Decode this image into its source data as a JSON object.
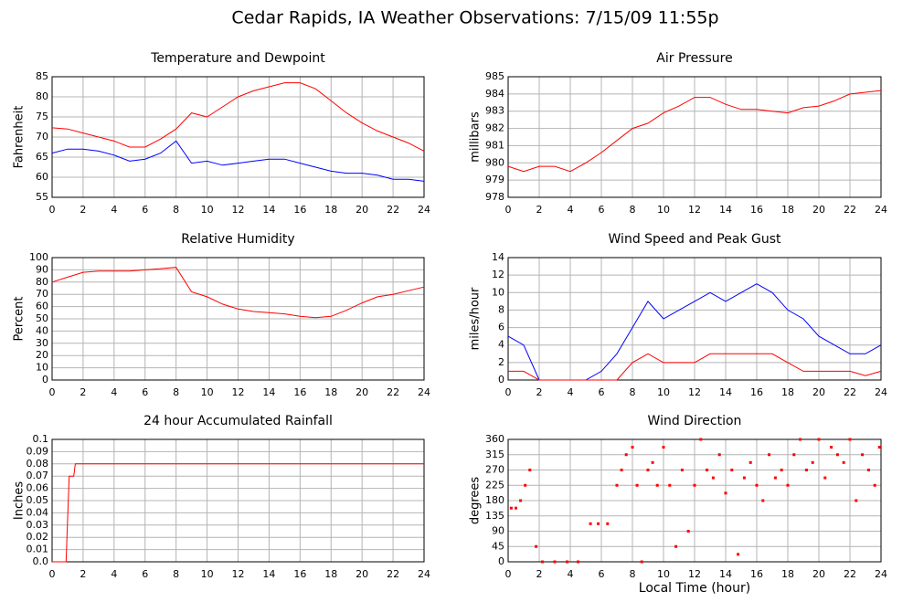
{
  "title": "Cedar Rapids, IA Weather Observations: 7/15/09 11:55p",
  "xlabel": "Local Time (hour)",
  "chart_data": [
    {
      "type": "line",
      "title": "Temperature and Dewpoint",
      "ylabel": "Fahrenheit",
      "x": [
        0,
        1,
        2,
        3,
        4,
        5,
        6,
        7,
        8,
        9,
        10,
        11,
        12,
        13,
        14,
        15,
        16,
        17,
        18,
        19,
        20,
        21,
        22,
        23,
        24
      ],
      "series": [
        {
          "name": "Temperature",
          "color": "#ff0000",
          "values": [
            72.3,
            72,
            71,
            70,
            69,
            67.5,
            67.5,
            69.5,
            72,
            76,
            75,
            77.5,
            80,
            81.5,
            82.5,
            83.5,
            83.5,
            82,
            79,
            76,
            73.5,
            71.5,
            70,
            68.5,
            66.5
          ]
        },
        {
          "name": "Dewpoint",
          "color": "#0000ff",
          "values": [
            66,
            67,
            67,
            66.5,
            65.5,
            64,
            64.5,
            66,
            69,
            63.5,
            64,
            63,
            63.5,
            64,
            64.5,
            64.5,
            63.5,
            62.5,
            61.5,
            61,
            61,
            60.5,
            59.5,
            59.5,
            59
          ]
        }
      ],
      "xlim": [
        0,
        24
      ],
      "xticks": [
        0,
        2,
        4,
        6,
        8,
        10,
        12,
        14,
        16,
        18,
        20,
        22,
        24
      ],
      "ylim": [
        55,
        85
      ],
      "yticks": [
        55,
        60,
        65,
        70,
        75,
        80,
        85
      ],
      "grid": true
    },
    {
      "type": "line",
      "title": "Air Pressure",
      "ylabel": "millibars",
      "x": [
        0,
        1,
        2,
        3,
        4,
        5,
        6,
        7,
        8,
        9,
        10,
        11,
        12,
        13,
        14,
        15,
        16,
        17,
        18,
        19,
        20,
        21,
        22,
        23,
        24
      ],
      "series": [
        {
          "name": "Pressure",
          "color": "#ff0000",
          "values": [
            979.8,
            979.5,
            979.8,
            979.8,
            979.5,
            980,
            980.6,
            981.3,
            982,
            982.3,
            982.9,
            983.3,
            983.8,
            983.8,
            983.4,
            983.1,
            983.1,
            983,
            982.9,
            983.2,
            983.3,
            983.6,
            984,
            984.1,
            984.2
          ]
        }
      ],
      "xlim": [
        0,
        24
      ],
      "xticks": [
        0,
        2,
        4,
        6,
        8,
        10,
        12,
        14,
        16,
        18,
        20,
        22,
        24
      ],
      "ylim": [
        978,
        985
      ],
      "yticks": [
        978,
        979,
        980,
        981,
        982,
        983,
        984,
        985
      ],
      "grid": true
    },
    {
      "type": "line",
      "title": "Relative Humidity",
      "ylabel": "Percent",
      "x": [
        0,
        1,
        2,
        3,
        4,
        5,
        6,
        7,
        8,
        9,
        10,
        11,
        12,
        13,
        14,
        15,
        16,
        17,
        18,
        19,
        20,
        21,
        22,
        23,
        24
      ],
      "series": [
        {
          "name": "Humidity",
          "color": "#ff0000",
          "values": [
            80,
            84,
            88,
            89,
            89,
            89,
            90,
            91,
            92,
            72,
            68,
            62,
            58,
            56,
            55,
            54,
            52,
            51,
            52,
            57,
            63,
            68,
            70,
            73,
            76
          ]
        }
      ],
      "xlim": [
        0,
        24
      ],
      "xticks": [
        0,
        2,
        4,
        6,
        8,
        10,
        12,
        14,
        16,
        18,
        20,
        22,
        24
      ],
      "ylim": [
        0,
        100
      ],
      "yticks": [
        0,
        10,
        20,
        30,
        40,
        50,
        60,
        70,
        80,
        90,
        100
      ],
      "grid": true
    },
    {
      "type": "line",
      "title": "Wind Speed and Peak Gust",
      "ylabel": "miles/hour",
      "x": [
        0,
        1,
        2,
        3,
        4,
        5,
        6,
        7,
        8,
        9,
        10,
        11,
        12,
        13,
        14,
        15,
        16,
        17,
        18,
        19,
        20,
        21,
        22,
        23,
        24
      ],
      "series": [
        {
          "name": "Peak Gust",
          "color": "#0000ff",
          "values": [
            5,
            4,
            0,
            0,
            0,
            0,
            1,
            3,
            6,
            9,
            7,
            8,
            9,
            10,
            9,
            10,
            11,
            10,
            8,
            7,
            5,
            4,
            3,
            3,
            4
          ]
        },
        {
          "name": "Wind Speed",
          "color": "#ff0000",
          "values": [
            1,
            1,
            0,
            0,
            0,
            0,
            0,
            0,
            2,
            3,
            2,
            2,
            2,
            3,
            3,
            3,
            3,
            3,
            2,
            1,
            1,
            1,
            1,
            0.5,
            1
          ]
        }
      ],
      "xlim": [
        0,
        24
      ],
      "xticks": [
        0,
        2,
        4,
        6,
        8,
        10,
        12,
        14,
        16,
        18,
        20,
        22,
        24
      ],
      "ylim": [
        0,
        14
      ],
      "yticks": [
        0,
        2,
        4,
        6,
        8,
        10,
        12,
        14
      ],
      "grid": true
    },
    {
      "type": "line",
      "title": "24 hour Accumulated Rainfall",
      "ylabel": "Inches",
      "x": [
        0,
        0.9,
        1.1,
        1.4,
        1.5,
        24
      ],
      "series": [
        {
          "name": "Rainfall",
          "color": "#ff0000",
          "values": [
            0,
            0,
            0.07,
            0.07,
            0.08,
            0.08
          ]
        }
      ],
      "xlim": [
        0,
        24
      ],
      "xticks": [
        0,
        2,
        4,
        6,
        8,
        10,
        12,
        14,
        16,
        18,
        20,
        22,
        24
      ],
      "ylim": [
        0,
        0.1
      ],
      "yticks": [
        {
          "value": 0,
          "label": "0.0"
        },
        0.01,
        0.02,
        0.03,
        0.04,
        0.05,
        0.06,
        0.07,
        0.08,
        0.09,
        0.1
      ],
      "grid": true
    },
    {
      "type": "scatter",
      "title": "Wind Direction",
      "ylabel": "degrees",
      "x": [
        0.2,
        0.5,
        0.8,
        1.1,
        1.4,
        1.8,
        2.2,
        3,
        3.8,
        4.5,
        5.3,
        5.8,
        6.4,
        7,
        7.3,
        7.6,
        8,
        8.3,
        8.6,
        9,
        9.3,
        9.6,
        10,
        10.4,
        10.8,
        11.2,
        11.6,
        12,
        12.4,
        12.8,
        13.2,
        13.6,
        14,
        14.4,
        14.8,
        15.2,
        15.6,
        16,
        16.4,
        16.8,
        17.2,
        17.6,
        18,
        18.4,
        18.8,
        19.2,
        19.6,
        20,
        20.4,
        20.8,
        21.2,
        21.6,
        22,
        22.4,
        22.8,
        23.2,
        23.6,
        23.9
      ],
      "series": [
        {
          "name": "Direction",
          "color": "#ff0000",
          "values": [
            158,
            158,
            180,
            225,
            270,
            45,
            0,
            0,
            0,
            0,
            112,
            112,
            112,
            225,
            270,
            315,
            337,
            225,
            0,
            270,
            292,
            225,
            337,
            225,
            45,
            270,
            90,
            225,
            360,
            270,
            247,
            315,
            202,
            270,
            22,
            247,
            292,
            225,
            180,
            315,
            247,
            270,
            225,
            315,
            360,
            270,
            292,
            360,
            247,
            337,
            315,
            292,
            360,
            180,
            315,
            270,
            225,
            337
          ]
        }
      ],
      "xlim": [
        0,
        24
      ],
      "xticks": [
        0,
        2,
        4,
        6,
        8,
        10,
        12,
        14,
        16,
        18,
        20,
        22,
        24
      ],
      "ylim": [
        0,
        360
      ],
      "yticks": [
        0,
        45,
        90,
        135,
        180,
        225,
        270,
        315,
        360
      ],
      "grid": true
    }
  ]
}
